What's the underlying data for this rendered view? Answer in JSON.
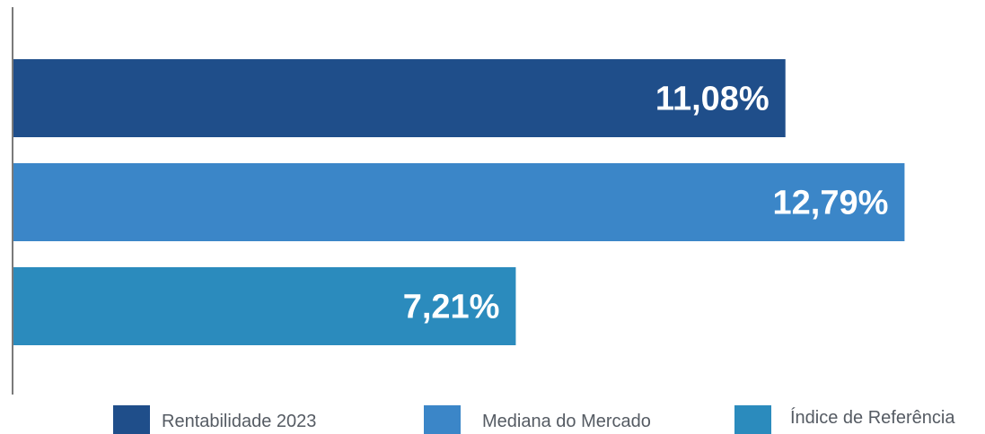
{
  "chart_data": {
    "type": "bar",
    "orientation": "horizontal",
    "categories": [
      "Rentabilidade 2023",
      "Mediana do Mercado",
      "Índice de Referência"
    ],
    "values": [
      11.08,
      12.79,
      7.21
    ],
    "value_labels": [
      "11,08%",
      "12,79%",
      "7,21%"
    ],
    "colors": [
      "#1f4e8a",
      "#3b86c8",
      "#2b8bbd"
    ],
    "xlim": [
      0,
      13.79
    ],
    "grid": false,
    "legend_position": "bottom",
    "title": "",
    "xlabel": "",
    "ylabel": ""
  },
  "legend": {
    "items": [
      {
        "label": "Rentabilidade 2023",
        "color": "#1f4e8a"
      },
      {
        "label": "Mediana do Mercado",
        "color": "#3b86c8"
      },
      {
        "label": "Índice de Referência",
        "color": "#2b8bbd"
      }
    ]
  }
}
